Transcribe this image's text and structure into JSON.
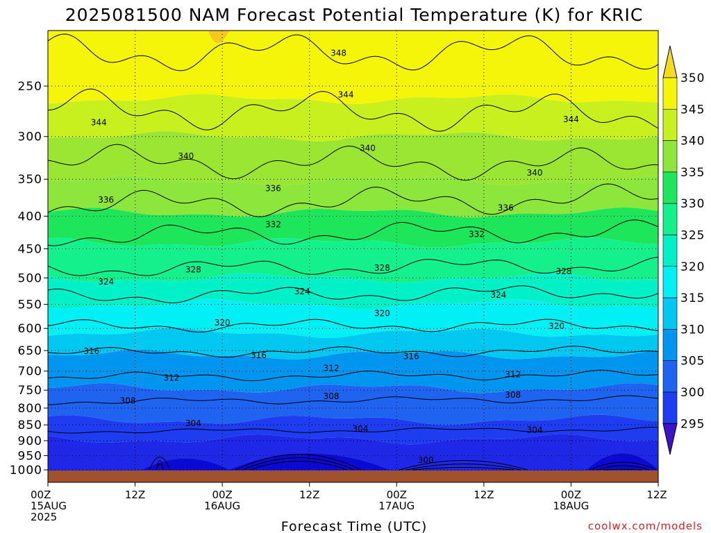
{
  "chart_data": {
    "type": "heatmap",
    "title": "2025081500 NAM Forecast Potential Temperature (K) for KRIC",
    "xlabel": "Forecast Time (UTC)",
    "ylabel": "",
    "credit": "coolwx.com/models",
    "y_scale": "log-pressure",
    "ylim": [
      1025,
      200
    ],
    "xlim": [
      0,
      84
    ],
    "y_ticks": [
      1000,
      950,
      900,
      850,
      800,
      750,
      700,
      650,
      600,
      550,
      500,
      450,
      400,
      350,
      300,
      250
    ],
    "x_ticks": [
      {
        "hour": 0,
        "lines": [
          "00Z",
          "15AUG",
          "2025"
        ]
      },
      {
        "hour": 12,
        "lines": [
          "12Z"
        ]
      },
      {
        "hour": 24,
        "lines": [
          "00Z",
          "16AUG"
        ]
      },
      {
        "hour": 36,
        "lines": [
          "12Z"
        ]
      },
      {
        "hour": 48,
        "lines": [
          "00Z",
          "17AUG"
        ]
      },
      {
        "hour": 60,
        "lines": [
          "12Z"
        ]
      },
      {
        "hour": 72,
        "lines": [
          "00Z",
          "18AUG"
        ]
      },
      {
        "hour": 84,
        "lines": [
          "12Z"
        ]
      }
    ],
    "colorbar": {
      "labels": [
        350,
        345,
        340,
        335,
        330,
        325,
        320,
        315,
        310,
        305,
        300,
        295
      ],
      "colors": [
        "#f5dc1e",
        "#f5f50a",
        "#c8f01e",
        "#8ce63c",
        "#1ee65a",
        "#14f08c",
        "#00f0c8",
        "#00f0f5",
        "#00c8f0",
        "#0096f0",
        "#1e64f0",
        "#1e3cf0",
        "#1414e6",
        "#3c14c8"
      ],
      "extend": "both"
    },
    "contours": [
      {
        "level": 304,
        "p_start": 870,
        "amp": 8,
        "trend": -6
      },
      {
        "level": 308,
        "p_start": 782,
        "amp": 10,
        "trend": -8
      },
      {
        "level": 312,
        "p_start": 715,
        "amp": 12,
        "trend": -6
      },
      {
        "level": 316,
        "p_start": 655,
        "amp": 12,
        "trend": -4
      },
      {
        "level": 320,
        "p_start": 595,
        "amp": 14,
        "trend": -2
      },
      {
        "level": 324,
        "p_start": 535,
        "amp": 16,
        "trend": -10
      },
      {
        "level": 328,
        "p_start": 485,
        "amp": 16,
        "trend": -8
      },
      {
        "level": 332,
        "p_start": 430,
        "amp": 18,
        "trend": -8
      },
      {
        "level": 336,
        "p_start": 385,
        "amp": 20,
        "trend": -10
      },
      {
        "level": 340,
        "p_start": 328,
        "amp": 20,
        "trend": 5
      },
      {
        "level": 344,
        "p_start": 272,
        "amp": 20,
        "trend": 5
      },
      {
        "level": 348,
        "p_start": 222,
        "amp": 16,
        "trend": 0
      }
    ],
    "contour_labels": [
      {
        "text": "348",
        "hour": 40,
        "p": 222
      },
      {
        "text": "344",
        "hour": 41,
        "p": 258
      },
      {
        "text": "344",
        "hour": 7,
        "p": 285
      },
      {
        "text": "344",
        "hour": 72,
        "p": 282
      },
      {
        "text": "340",
        "hour": 19,
        "p": 322
      },
      {
        "text": "340",
        "hour": 44,
        "p": 313
      },
      {
        "text": "340",
        "hour": 67,
        "p": 342
      },
      {
        "text": "336",
        "hour": 8,
        "p": 377
      },
      {
        "text": "336",
        "hour": 31,
        "p": 362
      },
      {
        "text": "336",
        "hour": 63,
        "p": 388
      },
      {
        "text": "332",
        "hour": 31,
        "p": 412
      },
      {
        "text": "332",
        "hour": 59,
        "p": 427
      },
      {
        "text": "328",
        "hour": 20,
        "p": 485
      },
      {
        "text": "328",
        "hour": 46,
        "p": 482
      },
      {
        "text": "328",
        "hour": 71,
        "p": 488
      },
      {
        "text": "324",
        "hour": 8,
        "p": 507
      },
      {
        "text": "324",
        "hour": 35,
        "p": 525
      },
      {
        "text": "324",
        "hour": 62,
        "p": 532
      },
      {
        "text": "320",
        "hour": 24,
        "p": 588
      },
      {
        "text": "320",
        "hour": 46,
        "p": 568
      },
      {
        "text": "320",
        "hour": 70,
        "p": 595
      },
      {
        "text": "316",
        "hour": 6,
        "p": 651
      },
      {
        "text": "316",
        "hour": 29,
        "p": 661
      },
      {
        "text": "316",
        "hour": 50,
        "p": 664
      },
      {
        "text": "312",
        "hour": 17,
        "p": 717
      },
      {
        "text": "312",
        "hour": 39,
        "p": 693
      },
      {
        "text": "312",
        "hour": 64,
        "p": 708
      },
      {
        "text": "308",
        "hour": 11,
        "p": 779
      },
      {
        "text": "308",
        "hour": 39,
        "p": 767
      },
      {
        "text": "308",
        "hour": 64,
        "p": 763
      },
      {
        "text": "304",
        "hour": 20,
        "p": 845
      },
      {
        "text": "304",
        "hour": 43,
        "p": 862
      },
      {
        "text": "304",
        "hour": 67,
        "p": 866
      },
      {
        "text": "300",
        "hour": 52,
        "p": 965
      }
    ]
  }
}
